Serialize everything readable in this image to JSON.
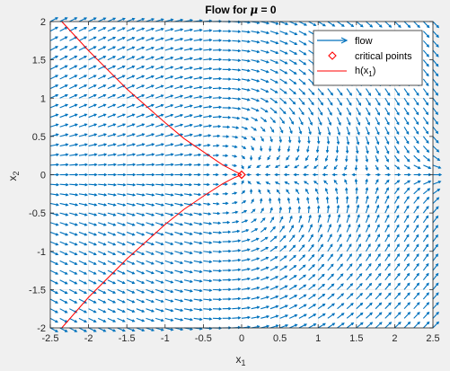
{
  "chart_data": {
    "type": "quiver",
    "title_prefix": "Flow for ",
    "title_symbol": "μ",
    "title_suffix": " = 0",
    "xlabel_base": "x",
    "xlabel_sub": "1",
    "ylabel_base": "x",
    "ylabel_sub": "2",
    "xlim": [
      -2.5,
      2.5
    ],
    "ylim": [
      -2,
      2
    ],
    "xticks": [
      -2.5,
      -2,
      -1.5,
      -1,
      -0.5,
      0,
      0.5,
      1,
      1.5,
      2,
      2.5
    ],
    "yticks": [
      -2,
      -1.5,
      -1,
      -0.5,
      0,
      0.5,
      1,
      1.5,
      2
    ],
    "xtick_labels": [
      "-2.5",
      "-2",
      "-1.5",
      "-1",
      "-0.5",
      "0",
      "0.5",
      "1",
      "1.5",
      "2",
      "2.5"
    ],
    "ytick_labels": [
      "-2",
      "-1.5",
      "-1",
      "-0.5",
      "0",
      "0.5",
      "1",
      "1.5",
      "2"
    ],
    "grid": true,
    "legend_position": "top-right",
    "legend": [
      {
        "label": "flow",
        "kind": "arrow"
      },
      {
        "label": "critical points",
        "kind": "diamond"
      },
      {
        "label_base": "h(x",
        "label_sub": "1",
        "label_end": ")",
        "kind": "line"
      }
    ],
    "quiver_field": {
      "grid_x": [
        -2.5,
        2.5,
        0.125
      ],
      "grid_y": [
        -2,
        2,
        0.125
      ],
      "color": "#0072bd"
    },
    "critical_points": [
      {
        "x": 0,
        "y": 0
      }
    ],
    "critical_color": "#ff0000",
    "h_curve_color": "#ff0000",
    "h_curve_upper": [
      [
        -2.35,
        2.0
      ],
      [
        -2.0,
        1.62
      ],
      [
        -1.5,
        1.12
      ],
      [
        -1.0,
        0.68
      ],
      [
        -0.75,
        0.47
      ],
      [
        -0.5,
        0.3
      ],
      [
        -0.25,
        0.13
      ],
      [
        -0.1,
        0.05
      ],
      [
        0,
        0
      ]
    ],
    "h_curve_lower": [
      [
        -2.35,
        -2.0
      ],
      [
        -2.0,
        -1.6
      ],
      [
        -1.5,
        -1.1
      ],
      [
        -1.0,
        -0.65
      ],
      [
        -0.75,
        -0.45
      ],
      [
        -0.5,
        -0.28
      ],
      [
        -0.25,
        -0.12
      ],
      [
        -0.1,
        -0.04
      ],
      [
        0,
        0
      ]
    ]
  }
}
